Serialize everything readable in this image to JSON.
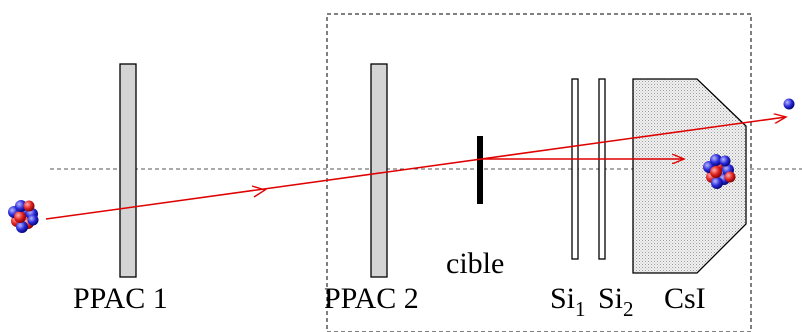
{
  "labels": {
    "ppac1": "PPAC 1",
    "ppac2": "PPAC 2",
    "target": "cible",
    "si1": {
      "base": "Si",
      "sub": "1"
    },
    "si2": {
      "base": "Si",
      "sub": "2"
    },
    "csi": "CsI"
  },
  "colors": {
    "beam": "#e00000",
    "detector_fill": "#d4d4d4",
    "target": "#000000",
    "nucleon_proton": "#e02020",
    "nucleon_neutron": "#2a2ad8"
  }
}
